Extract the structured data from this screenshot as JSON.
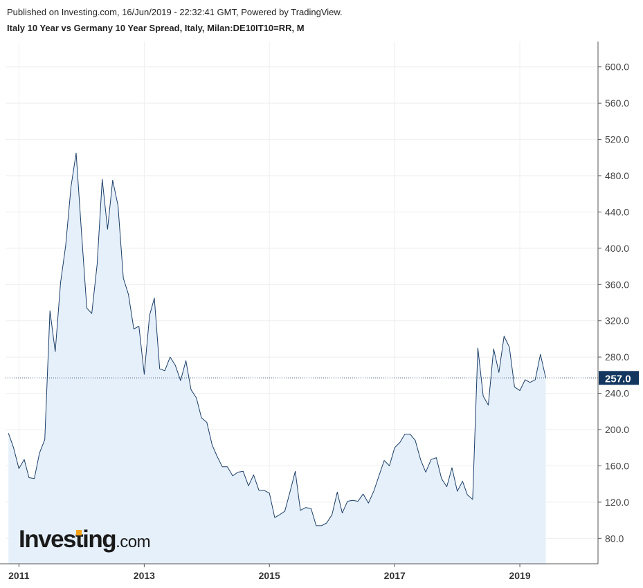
{
  "header": {
    "published": "Published on Investing.com, 16/Jun/2019 - 22:32:41 GMT, Powered by TradingView.",
    "title": "Italy 10 Year vs Germany 10 Year Spread, Italy, Milan:DE10IT10=RR, M"
  },
  "logo": {
    "main": "Investing",
    "domain": ".com"
  },
  "colors": {
    "line": "#1b3e66",
    "area": "#e3eefb",
    "grid": "#eeeeee",
    "axis": "#555555",
    "price_badge": "#12365e",
    "logo_accent": "#f7a21b"
  },
  "chart_data": {
    "type": "area",
    "title": "Italy 10 Year vs Germany 10 Year Spread, Italy, Milan:DE10IT10=RR, M",
    "xlabel": "",
    "ylabel": "",
    "x_start": "2010-11",
    "x_interval": "monthly",
    "x_ticks": [
      "2011",
      "2013",
      "2015",
      "2017",
      "2019"
    ],
    "y_ticks": [
      "80.0",
      "120.0",
      "160.0",
      "200.0",
      "240.0",
      "280.0",
      "320.0",
      "360.0",
      "400.0",
      "440.0",
      "480.0",
      "520.0",
      "560.0",
      "600.0"
    ],
    "ylim": [
      52,
      628
    ],
    "xlim": [
      "2010-10-15",
      "2020-04-01"
    ],
    "grid": true,
    "y_axis_side": "right",
    "last_value": "257.0",
    "series": [
      {
        "values": [
          196,
          180,
          157,
          167,
          147,
          146,
          174,
          189,
          331,
          286,
          362,
          403,
          468,
          505,
          418,
          334,
          328,
          382,
          476,
          421,
          475,
          447,
          367,
          349,
          311,
          314,
          261,
          326,
          345,
          267,
          265,
          280,
          271,
          254,
          276,
          244,
          235,
          213,
          208,
          183,
          171,
          159,
          159,
          149,
          153,
          154,
          138,
          150,
          133,
          133,
          130,
          103,
          106,
          110,
          131,
          154,
          111,
          114,
          113,
          94,
          94,
          97,
          106,
          131,
          108,
          121,
          122,
          121,
          129,
          119,
          132,
          149,
          166,
          160,
          180,
          186,
          195,
          195,
          188,
          167,
          153,
          167,
          169,
          146,
          137,
          158,
          132,
          143,
          128,
          123,
          290,
          237,
          227,
          289,
          263,
          303,
          291,
          247,
          243,
          255,
          252,
          255,
          283,
          257
        ]
      }
    ]
  }
}
